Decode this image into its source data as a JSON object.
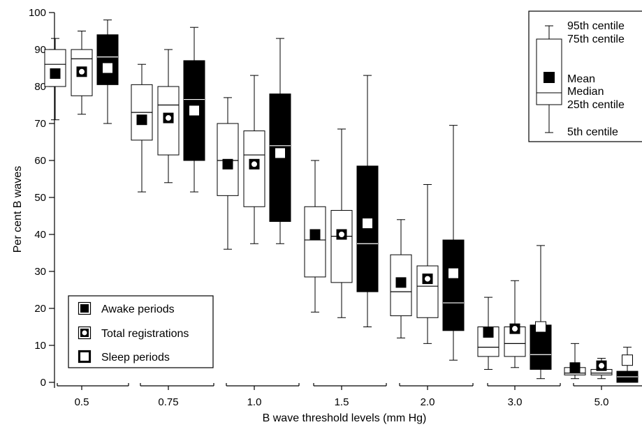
{
  "chart_data": {
    "type": "box",
    "xlabel": "B wave threshold levels (mm Hg)",
    "ylabel": "Per cent B waves",
    "ylim": [
      0,
      100
    ],
    "yticks": [
      0,
      10,
      20,
      30,
      40,
      50,
      60,
      70,
      80,
      90,
      100
    ],
    "categories": [
      "0.5",
      "0.75",
      "1.0",
      "1.5",
      "2.0",
      "3.0",
      "5.0"
    ],
    "series": [
      {
        "name": "Awake periods",
        "box_fill": "#ffffff",
        "mean_marker": "filled-square",
        "boxes": [
          {
            "p5": 71,
            "p25": 80,
            "median": 86,
            "p75": 90,
            "p95": 93,
            "mean": 83.5
          },
          {
            "p5": 51.5,
            "p25": 65.5,
            "median": 73,
            "p75": 80.5,
            "p95": 86,
            "mean": 71
          },
          {
            "p5": 36,
            "p25": 50.5,
            "median": 60,
            "p75": 70,
            "p95": 77,
            "mean": 59
          },
          {
            "p5": 19,
            "p25": 28.5,
            "median": 38.5,
            "p75": 47.5,
            "p95": 60,
            "mean": 40
          },
          {
            "p5": 12,
            "p25": 18,
            "median": 24.5,
            "p75": 34.5,
            "p95": 44,
            "mean": 27
          },
          {
            "p5": 3.5,
            "p25": 7,
            "median": 9.5,
            "p75": 15,
            "p95": 23,
            "mean": 13.5
          },
          {
            "p5": 1,
            "p25": 2,
            "median": 2.5,
            "p75": 4,
            "p95": 10.5,
            "mean": 4
          }
        ]
      },
      {
        "name": "Total registrations",
        "box_fill": "#ffffff",
        "mean_marker": "square-with-circle",
        "boxes": [
          {
            "p5": 72.5,
            "p25": 77.5,
            "median": 87.5,
            "p75": 90,
            "p95": 95,
            "mean": 84
          },
          {
            "p5": 54,
            "p25": 61.5,
            "median": 75,
            "p75": 80,
            "p95": 90,
            "mean": 71.5
          },
          {
            "p5": 37.5,
            "p25": 47.5,
            "median": 61.5,
            "p75": 68,
            "p95": 83,
            "mean": 59
          },
          {
            "p5": 17.5,
            "p25": 27,
            "median": 39.5,
            "p75": 46.5,
            "p95": 68.5,
            "mean": 40
          },
          {
            "p5": 10.5,
            "p25": 17.5,
            "median": 26,
            "p75": 31.5,
            "p95": 53.5,
            "mean": 28
          },
          {
            "p5": 4,
            "p25": 7,
            "median": 10.5,
            "p75": 15,
            "p95": 27.5,
            "mean": 14.5
          },
          {
            "p5": 1,
            "p25": 2,
            "median": 2.5,
            "p75": 3.5,
            "p95": 6.5,
            "mean": 4.5
          }
        ]
      },
      {
        "name": "Sleep periods",
        "box_fill": "#000000",
        "mean_marker": "open-square",
        "boxes": [
          {
            "p5": 70,
            "p25": 80.5,
            "median": 88,
            "p75": 94,
            "p95": 98,
            "mean": 85
          },
          {
            "p5": 51.5,
            "p25": 60,
            "median": 76.5,
            "p75": 87,
            "p95": 96,
            "mean": 73.5
          },
          {
            "p5": 37.5,
            "p25": 43.5,
            "median": 64,
            "p75": 78,
            "p95": 93,
            "mean": 62
          },
          {
            "p5": 15,
            "p25": 24.5,
            "median": 37.5,
            "p75": 58.5,
            "p95": 83,
            "mean": 43
          },
          {
            "p5": 6,
            "p25": 14,
            "median": 21.5,
            "p75": 38.5,
            "p95": 69.5,
            "mean": 29.5
          },
          {
            "p5": 1,
            "p25": 3.5,
            "median": 7.5,
            "p75": 15.5,
            "p95": 37,
            "mean": 15
          },
          {
            "p5": 0,
            "p25": 0,
            "median": 1.5,
            "p75": 3,
            "p95": 9.5,
            "mean": 6
          }
        ]
      }
    ],
    "legend": {
      "placement": "bottom-left",
      "entries": [
        "Awake periods",
        "Total registrations",
        "Sleep periods"
      ]
    },
    "key": {
      "placement": "top-right",
      "labels": {
        "p95": "95th centile",
        "p75": "75th centile",
        "mean": "Mean",
        "median": "Median",
        "p25": "25th centile",
        "p5": "5th centile"
      }
    },
    "grid": false
  }
}
